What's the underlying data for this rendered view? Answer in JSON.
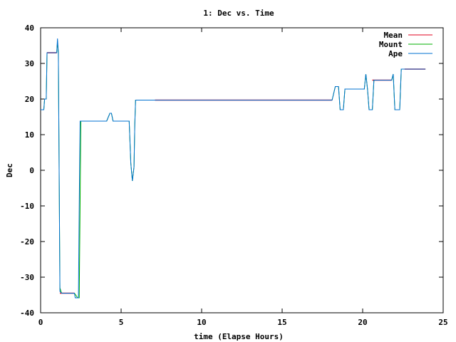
{
  "chart_data": {
    "type": "line",
    "title": "1: Dec vs. Time",
    "xlabel": "time (Elapse Hours)",
    "ylabel": "Dec",
    "xlim": [
      0,
      25
    ],
    "ylim": [
      -40,
      40
    ],
    "xticks": [
      "0",
      "5",
      "10",
      "15",
      "20",
      "25"
    ],
    "yticks": [
      "40",
      "30",
      "20",
      "10",
      "0",
      "-10",
      "-20",
      "-30",
      "-40"
    ],
    "grid": false,
    "legend_position": "top-right",
    "series": [
      {
        "name": "Mean",
        "color": "#e0001e",
        "segments": [
          [
            [
              0.4,
              33
            ],
            [
              1.0,
              33
            ]
          ],
          [
            [
              1.2,
              -34.5
            ],
            [
              2.1,
              -34.5
            ]
          ],
          [
            [
              7.1,
              19.7
            ],
            [
              18.1,
              19.7
            ]
          ],
          [
            [
              20.6,
              25.3
            ],
            [
              21.8,
              25.3
            ]
          ],
          [
            [
              22.6,
              28.4
            ],
            [
              23.9,
              28.4
            ]
          ]
        ]
      },
      {
        "name": "Mount",
        "color": "#00b000",
        "points": [
          [
            0.0,
            17
          ],
          [
            0.2,
            17
          ],
          [
            0.25,
            20
          ],
          [
            0.35,
            20
          ],
          [
            0.4,
            33
          ],
          [
            1.0,
            33
          ],
          [
            1.05,
            36
          ],
          [
            1.1,
            33
          ],
          [
            1.15,
            0
          ],
          [
            1.2,
            -33
          ],
          [
            1.3,
            -34.5
          ],
          [
            2.1,
            -34.5
          ],
          [
            2.3,
            -35.8
          ],
          [
            2.4,
            -35.8
          ],
          [
            2.45,
            -10
          ],
          [
            2.5,
            13.8
          ],
          [
            4.1,
            13.8
          ],
          [
            4.3,
            16
          ],
          [
            4.4,
            16
          ],
          [
            4.5,
            13.8
          ],
          [
            5.5,
            13.8
          ],
          [
            5.6,
            2
          ],
          [
            5.7,
            -3
          ],
          [
            5.8,
            1
          ],
          [
            5.85,
            13
          ],
          [
            5.9,
            19.7
          ],
          [
            18.1,
            19.7
          ],
          [
            18.3,
            23.5
          ],
          [
            18.5,
            23.5
          ],
          [
            18.6,
            17
          ],
          [
            18.8,
            17
          ],
          [
            18.9,
            22.8
          ],
          [
            20.1,
            22.8
          ],
          [
            20.2,
            27
          ],
          [
            20.3,
            22.8
          ],
          [
            20.4,
            17
          ],
          [
            20.6,
            17
          ],
          [
            20.7,
            25.3
          ],
          [
            21.8,
            25.3
          ],
          [
            21.9,
            27
          ],
          [
            22.0,
            17
          ],
          [
            22.3,
            17
          ],
          [
            22.4,
            28.4
          ],
          [
            23.9,
            28.4
          ]
        ]
      },
      {
        "name": "Ape",
        "color": "#0070d0",
        "points": [
          [
            0.0,
            17
          ],
          [
            0.2,
            17
          ],
          [
            0.25,
            20
          ],
          [
            0.35,
            20
          ],
          [
            0.4,
            33
          ],
          [
            1.0,
            33
          ],
          [
            1.05,
            37
          ],
          [
            1.1,
            33
          ],
          [
            1.15,
            0
          ],
          [
            1.2,
            -34
          ],
          [
            1.3,
            -34.5
          ],
          [
            2.1,
            -34.5
          ],
          [
            2.15,
            -35.8
          ],
          [
            2.35,
            -35.8
          ],
          [
            2.4,
            -10
          ],
          [
            2.45,
            13.8
          ],
          [
            4.1,
            13.8
          ],
          [
            4.3,
            16
          ],
          [
            4.4,
            16
          ],
          [
            4.5,
            13.8
          ],
          [
            5.5,
            13.8
          ],
          [
            5.6,
            2
          ],
          [
            5.7,
            -3
          ],
          [
            5.8,
            1
          ],
          [
            5.85,
            13
          ],
          [
            5.9,
            19.7
          ],
          [
            18.1,
            19.7
          ],
          [
            18.3,
            23.5
          ],
          [
            18.5,
            23.5
          ],
          [
            18.6,
            17
          ],
          [
            18.8,
            17
          ],
          [
            18.9,
            22.8
          ],
          [
            20.1,
            22.8
          ],
          [
            20.2,
            27
          ],
          [
            20.3,
            22.8
          ],
          [
            20.4,
            17
          ],
          [
            20.6,
            17
          ],
          [
            20.7,
            25.3
          ],
          [
            21.8,
            25.3
          ],
          [
            21.9,
            27
          ],
          [
            22.0,
            17
          ],
          [
            22.3,
            17
          ],
          [
            22.4,
            28.4
          ],
          [
            23.9,
            28.4
          ]
        ]
      }
    ]
  }
}
